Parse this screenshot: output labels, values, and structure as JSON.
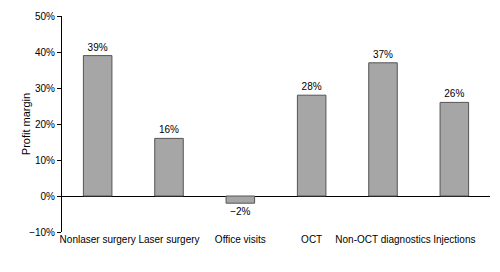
{
  "chart_data": {
    "type": "bar",
    "categories": [
      "Nonlaser surgery",
      "Laser surgery",
      "Office visits",
      "OCT",
      "Non-OCT diagnostics",
      "Injections"
    ],
    "values": [
      39,
      16,
      -2,
      28,
      37,
      26
    ],
    "value_labels": [
      "39%",
      "16%",
      "−2%",
      "28%",
      "37%",
      "26%"
    ],
    "data_labels": true,
    "color": "#a6a6a6",
    "y_label": "Profit margin",
    "ylim": [
      -10,
      50
    ],
    "yticks": [
      {
        "value": -10,
        "label": "−10%"
      },
      {
        "value": 0,
        "label": "0%"
      },
      {
        "value": 10,
        "label": "10%"
      },
      {
        "value": 20,
        "label": "20%"
      },
      {
        "value": 30,
        "label": "30%"
      },
      {
        "value": 40,
        "label": "40%"
      },
      {
        "value": 50,
        "label": "50%"
      }
    ],
    "grid": false
  }
}
